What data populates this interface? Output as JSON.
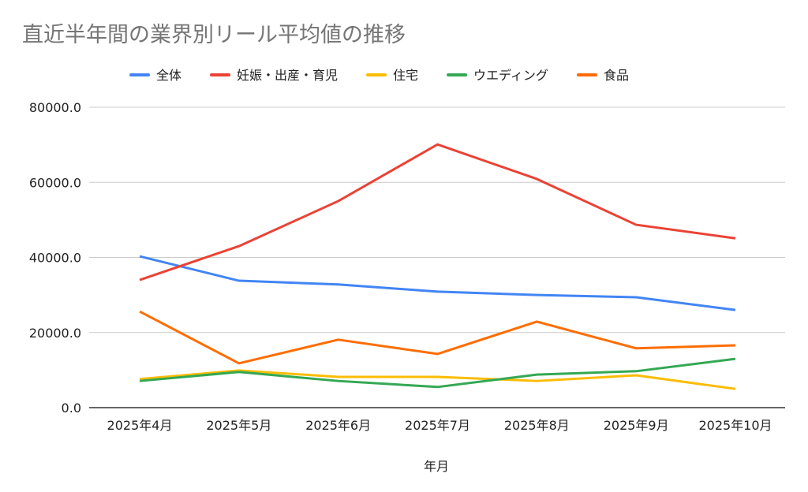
{
  "chart_data": {
    "type": "line",
    "title": "直近半年間の業界別リール平均値の推移",
    "xlabel": "年月",
    "ylabel": "",
    "ylim": [
      0,
      80000
    ],
    "yticks": [
      "0.0",
      "20000.0",
      "40000.0",
      "60000.0",
      "80000.0"
    ],
    "grid": true,
    "legend_position": "top",
    "categories": [
      "2025年4月",
      "2025年5月",
      "2025年6月",
      "2025年7月",
      "2025年8月",
      "2025年9月",
      "2025年10月"
    ],
    "series": [
      {
        "name": "全体",
        "color": "#4285f4",
        "values": [
          40300,
          33800,
          32800,
          30900,
          30000,
          29400,
          26000
        ]
      },
      {
        "name": "妊娠・出産・育児",
        "color": "#ea4335",
        "values": [
          34000,
          43000,
          55000,
          70100,
          60900,
          48700,
          45100
        ]
      },
      {
        "name": "住宅",
        "color": "#fbbc04",
        "values": [
          7600,
          9900,
          8200,
          8200,
          7100,
          8600,
          5000
        ]
      },
      {
        "name": "ウエディング",
        "color": "#34a853",
        "values": [
          7100,
          9500,
          7100,
          5500,
          8800,
          9700,
          13000
        ]
      },
      {
        "name": "食品",
        "color": "#ff6d01",
        "values": [
          25600,
          11800,
          18100,
          14300,
          22900,
          15800,
          16600
        ]
      }
    ]
  }
}
